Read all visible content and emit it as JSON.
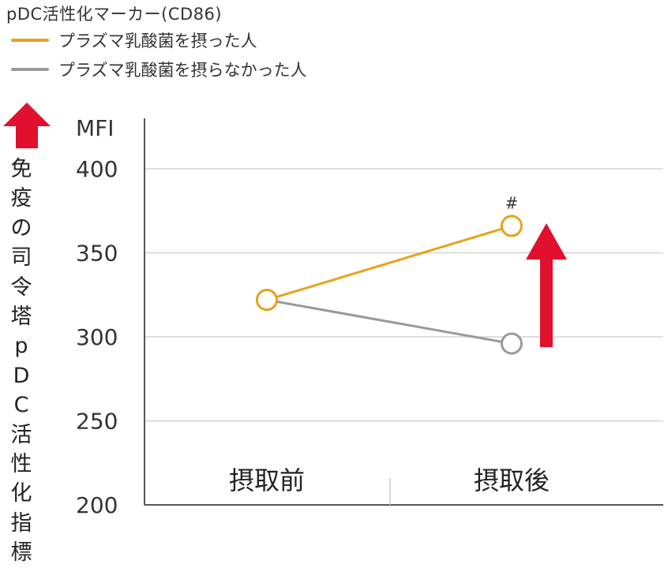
{
  "chart_data": {
    "type": "line",
    "title": "pDC活性化マーカー(CD86)",
    "ylabel": "免疫の司令塔pDC活性化指標",
    "yunit": "MFI",
    "categories": [
      "摂取前",
      "摂取後"
    ],
    "series": [
      {
        "name": "プラズマ乳酸菌を摂った人",
        "color": "#e8a21c",
        "values": [
          322,
          366
        ]
      },
      {
        "name": "プラズマ乳酸菌を摂らなかった人",
        "color": "#999999",
        "values": [
          322,
          296
        ]
      }
    ],
    "ylim": [
      200,
      400
    ],
    "yticks": [
      200,
      250,
      300,
      350,
      400
    ],
    "grid": true,
    "legend_position": "top-left",
    "annotations": [
      {
        "text": "#",
        "category": "摂取後",
        "series": 0
      }
    ],
    "arrow_color": "#e0102e"
  }
}
